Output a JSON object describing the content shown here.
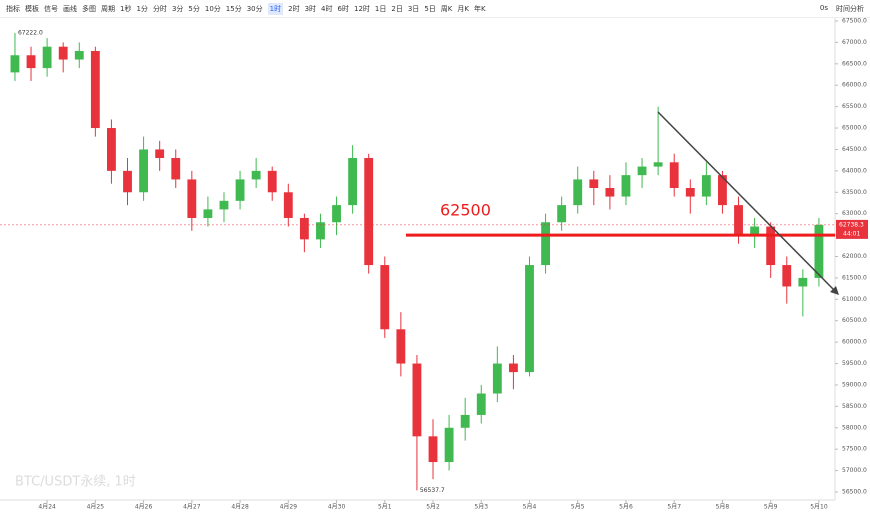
{
  "toolbar": {
    "items": [
      "指标",
      "模板",
      "信号",
      "画线",
      "多图",
      "周期",
      "1秒",
      "1分",
      "分时",
      "3分",
      "5分",
      "10分",
      "15分",
      "30分",
      "1时",
      "2时",
      "3时",
      "4时",
      "6时",
      "12时",
      "1日",
      "2日",
      "3日",
      "5日",
      "周K",
      "月K",
      "年K"
    ],
    "active": 14,
    "right": [
      "0s",
      "时间分析"
    ]
  },
  "chart_data": {
    "type": "candlestick",
    "title": "BTC/USDT永续, 1时",
    "up_color": "#3fb950",
    "down_color": "#e8323c",
    "candles": [
      [
        66300,
        67222,
        66100,
        66700
      ],
      [
        66700,
        66900,
        66100,
        66400
      ],
      [
        66400,
        67100,
        66200,
        66900
      ],
      [
        66900,
        67000,
        66300,
        66600
      ],
      [
        66600,
        67000,
        66400,
        66800
      ],
      [
        66800,
        66900,
        64800,
        65000
      ],
      [
        65000,
        65200,
        63700,
        64000
      ],
      [
        64000,
        64300,
        63200,
        63500
      ],
      [
        63500,
        64800,
        63300,
        64500
      ],
      [
        64500,
        64700,
        64000,
        64300
      ],
      [
        64300,
        64500,
        63600,
        63800
      ],
      [
        63800,
        64000,
        62600,
        62900
      ],
      [
        62900,
        63400,
        62700,
        63100
      ],
      [
        63100,
        63500,
        62800,
        63300
      ],
      [
        63300,
        64000,
        63100,
        63800
      ],
      [
        63800,
        64300,
        63600,
        64000
      ],
      [
        64000,
        64100,
        63300,
        63500
      ],
      [
        63500,
        63700,
        62700,
        62900
      ],
      [
        62900,
        63000,
        62100,
        62400
      ],
      [
        62400,
        63000,
        62200,
        62800
      ],
      [
        62800,
        63400,
        62500,
        63200
      ],
      [
        63200,
        64600,
        63000,
        64300
      ],
      [
        64300,
        64400,
        61600,
        61800
      ],
      [
        61800,
        62000,
        60100,
        60300
      ],
      [
        60300,
        60700,
        59200,
        59500
      ],
      [
        59500,
        59700,
        56537.7,
        57800
      ],
      [
        57800,
        58200,
        56800,
        57200
      ],
      [
        57200,
        58300,
        57000,
        58000
      ],
      [
        58000,
        58700,
        57700,
        58300
      ],
      [
        58300,
        59000,
        58100,
        58800
      ],
      [
        58800,
        59900,
        58600,
        59500
      ],
      [
        59500,
        59700,
        58900,
        59300
      ],
      [
        59300,
        62000,
        59200,
        61800
      ],
      [
        61800,
        63000,
        61600,
        62800
      ],
      [
        62800,
        63400,
        62600,
        63200
      ],
      [
        63200,
        64100,
        63000,
        63800
      ],
      [
        63800,
        64000,
        63200,
        63600
      ],
      [
        63600,
        63900,
        63100,
        63400
      ],
      [
        63400,
        64200,
        63200,
        63900
      ],
      [
        63900,
        64300,
        63600,
        64100
      ],
      [
        64100,
        65500,
        63900,
        64200
      ],
      [
        64200,
        64400,
        63400,
        63600
      ],
      [
        63600,
        63800,
        63000,
        63400
      ],
      [
        63400,
        64200,
        63200,
        63900
      ],
      [
        63900,
        64000,
        63000,
        63200
      ],
      [
        63200,
        63400,
        62300,
        62500
      ],
      [
        62500,
        62900,
        62200,
        62700
      ],
      [
        62700,
        62800,
        61500,
        61800
      ],
      [
        61800,
        62000,
        60900,
        61300
      ],
      [
        61300,
        61700,
        60600,
        61500
      ],
      [
        61500,
        62900,
        61300,
        62738.3
      ]
    ],
    "xlim": [
      -0.93,
      51.0
    ],
    "xticks": [
      {
        "value": 2,
        "label": "4月24"
      },
      {
        "value": 5,
        "label": "4月25"
      },
      {
        "value": 8,
        "label": "4月26"
      },
      {
        "value": 11,
        "label": "4月27"
      },
      {
        "value": 14,
        "label": "4月28"
      },
      {
        "value": 17,
        "label": "4月29"
      },
      {
        "value": 20,
        "label": "4月30"
      },
      {
        "value": 23,
        "label": "5月1"
      },
      {
        "value": 26,
        "label": "5月2"
      },
      {
        "value": 29,
        "label": "5月3"
      },
      {
        "value": 32,
        "label": "5月4"
      },
      {
        "value": 35,
        "label": "5月5"
      },
      {
        "value": 38,
        "label": "5月6"
      },
      {
        "value": 41,
        "label": "5月7"
      },
      {
        "value": 44,
        "label": "5月8"
      },
      {
        "value": 47,
        "label": "5月9"
      },
      {
        "value": 50,
        "label": "5月10"
      }
    ],
    "ylim": [
      56500,
      67500
    ],
    "yticks": [
      {
        "value": 56500,
        "label": "56500.0"
      },
      {
        "value": 57000,
        "label": "57000.0"
      },
      {
        "value": 57500,
        "label": "57500.0"
      },
      {
        "value": 58000,
        "label": "58000.0"
      },
      {
        "value": 58500,
        "label": "58500.0"
      },
      {
        "value": 59000,
        "label": "59000.0"
      },
      {
        "value": 59500,
        "label": "59500.0"
      },
      {
        "value": 60000,
        "label": "60000.0"
      },
      {
        "value": 60500,
        "label": "60500.0"
      },
      {
        "value": 61000,
        "label": "61000.0"
      },
      {
        "value": 61500,
        "label": "61500.0"
      },
      {
        "value": 62000,
        "label": "62000.0"
      },
      {
        "value": 62500,
        "label": "62500.0"
      },
      {
        "value": 63000,
        "label": "63000.0"
      },
      {
        "value": 63500,
        "label": "63500.0"
      },
      {
        "value": 64000,
        "label": "64000.0"
      },
      {
        "value": 64500,
        "label": "64500.0"
      },
      {
        "value": 65000,
        "label": "65000.0"
      },
      {
        "value": 65500,
        "label": "65500.0"
      },
      {
        "value": 66000,
        "label": "66000.0"
      },
      {
        "value": 66500,
        "label": "66500.0"
      },
      {
        "value": 67000,
        "label": "67000.0"
      },
      {
        "value": 67500,
        "label": "67500.0"
      }
    ],
    "high_label": {
      "value": 67222,
      "label": "67222.0",
      "index": 0
    },
    "low_label": {
      "value": 56537.7,
      "label": "56537.7",
      "index": 25
    },
    "level": {
      "value": 62500,
      "label": "62500",
      "color": "#ee1c1c"
    },
    "last_price": {
      "value": 62738.3,
      "label": "62738.3",
      "countdown": "44:01"
    }
  }
}
